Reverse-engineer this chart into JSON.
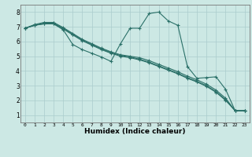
{
  "xlabel": "Humidex (Indice chaleur)",
  "background_color": "#cce8e4",
  "grid_color": "#aacccc",
  "line_color": "#2a7068",
  "xlim": [
    -0.5,
    23.5
  ],
  "ylim": [
    0.5,
    8.5
  ],
  "xticks": [
    0,
    1,
    2,
    3,
    4,
    5,
    6,
    7,
    8,
    9,
    10,
    11,
    12,
    13,
    14,
    15,
    16,
    17,
    18,
    19,
    20,
    21,
    22,
    23
  ],
  "yticks": [
    1,
    2,
    3,
    4,
    5,
    6,
    7,
    8
  ],
  "series": [
    {
      "x": [
        0,
        1,
        2,
        3,
        4,
        5,
        6,
        7,
        8,
        9,
        10,
        11,
        12,
        13,
        14,
        15,
        16,
        17,
        18,
        19,
        20,
        21,
        22,
        23
      ],
      "y": [
        6.9,
        7.15,
        7.3,
        7.3,
        6.95,
        6.55,
        6.15,
        5.85,
        5.55,
        5.3,
        5.1,
        5.0,
        4.9,
        4.7,
        4.45,
        4.2,
        3.95,
        3.65,
        3.4,
        3.1,
        2.7,
        2.15,
        1.3,
        1.3
      ]
    },
    {
      "x": [
        0,
        1,
        2,
        3,
        4,
        5,
        6,
        7,
        8,
        9,
        10,
        11,
        12,
        13,
        14,
        15,
        16,
        17,
        18,
        19,
        20,
        21,
        22,
        23
      ],
      "y": [
        6.9,
        7.1,
        7.25,
        7.25,
        6.9,
        6.5,
        6.1,
        5.8,
        5.5,
        5.25,
        5.05,
        4.95,
        4.8,
        4.6,
        4.35,
        4.1,
        3.85,
        3.55,
        3.3,
        3.0,
        2.6,
        2.05,
        1.3,
        1.3
      ]
    },
    {
      "x": [
        0,
        1,
        2,
        3,
        4,
        5,
        6,
        7,
        8,
        9,
        10,
        11,
        12,
        13,
        14,
        15,
        16,
        17,
        18,
        19,
        20,
        21,
        22,
        23
      ],
      "y": [
        6.9,
        7.1,
        7.2,
        7.2,
        6.85,
        6.45,
        6.05,
        5.75,
        5.45,
        5.2,
        5.0,
        4.9,
        4.75,
        4.55,
        4.3,
        4.05,
        3.8,
        3.5,
        3.25,
        2.95,
        2.55,
        2.0,
        1.3,
        1.3
      ]
    },
    {
      "x": [
        0,
        1,
        2,
        3,
        4,
        5,
        6,
        7,
        8,
        9,
        10,
        11,
        12,
        13,
        14,
        15,
        16,
        17,
        18,
        19,
        20,
        21,
        22,
        23
      ],
      "y": [
        6.9,
        7.1,
        7.2,
        7.2,
        6.8,
        5.8,
        5.45,
        5.2,
        4.95,
        4.65,
        5.85,
        6.9,
        6.9,
        7.9,
        8.0,
        7.4,
        7.1,
        4.3,
        3.5,
        3.55,
        3.6,
        2.75,
        1.3,
        1.3
      ]
    }
  ]
}
